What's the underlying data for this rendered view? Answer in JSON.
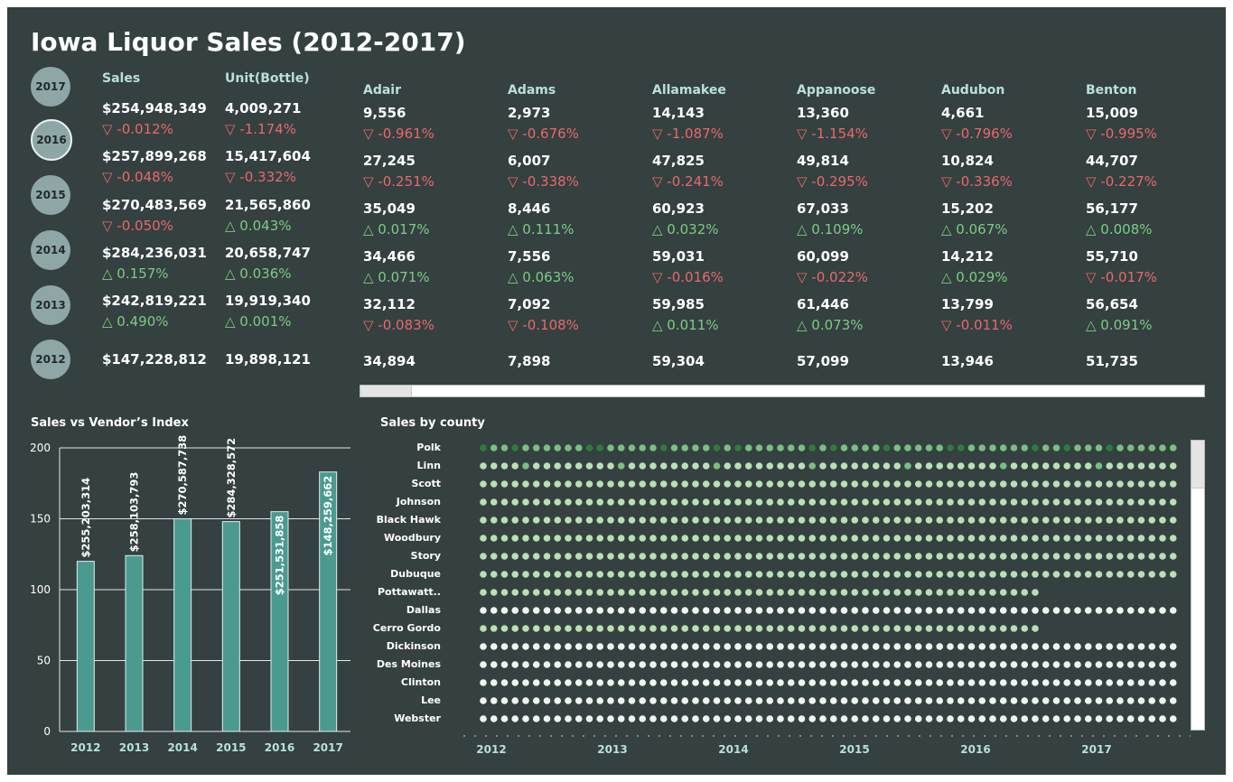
{
  "title": "Iowa Liquor Sales (2012-2017)",
  "years": [
    "2017",
    "2016",
    "2015",
    "2014",
    "2013",
    "2012"
  ],
  "selected_year": "2016",
  "headers": {
    "sales": "Sales",
    "units": "Unit(Bottle)"
  },
  "summary_rows": [
    {
      "sales": "$254,948,349",
      "sales_chg": "▽ -0.012%",
      "sales_dir": "neg",
      "units": "4,009,271",
      "units_chg": "▽ -1.174%",
      "units_dir": "neg"
    },
    {
      "sales": "$257,899,268",
      "sales_chg": "▽ -0.048%",
      "sales_dir": "neg",
      "units": "15,417,604",
      "units_chg": "▽ -0.332%",
      "units_dir": "neg"
    },
    {
      "sales": "$270,483,569",
      "sales_chg": "▽ -0.050%",
      "sales_dir": "neg",
      "units": "21,565,860",
      "units_chg": "△ 0.043%",
      "units_dir": "pos"
    },
    {
      "sales": "$284,236,031",
      "sales_chg": "△ 0.157%",
      "sales_dir": "pos",
      "units": "20,658,747",
      "units_chg": "△ 0.036%",
      "units_dir": "pos"
    },
    {
      "sales": "$242,819,221",
      "sales_chg": "△ 0.490%",
      "sales_dir": "pos",
      "units": "19,919,340",
      "units_chg": "△ 0.001%",
      "units_dir": "pos"
    },
    {
      "sales": "$147,228,812",
      "sales_chg": "",
      "sales_dir": "",
      "units": "19,898,121",
      "units_chg": "",
      "units_dir": ""
    }
  ],
  "counties": [
    {
      "name": "Adair",
      "rows": [
        {
          "v": "9,556",
          "c": "▽ -0.961%",
          "d": "neg"
        },
        {
          "v": "27,245",
          "c": "▽ -0.251%",
          "d": "neg"
        },
        {
          "v": "35,049",
          "c": "△ 0.017%",
          "d": "pos"
        },
        {
          "v": "34,466",
          "c": "△ 0.071%",
          "d": "pos"
        },
        {
          "v": "32,112",
          "c": "▽ -0.083%",
          "d": "neg"
        },
        {
          "v": "34,894",
          "c": "",
          "d": ""
        }
      ]
    },
    {
      "name": "Adams",
      "rows": [
        {
          "v": "2,973",
          "c": "▽ -0.676%",
          "d": "neg"
        },
        {
          "v": "6,007",
          "c": "▽ -0.338%",
          "d": "neg"
        },
        {
          "v": "8,446",
          "c": "△ 0.111%",
          "d": "pos"
        },
        {
          "v": "7,556",
          "c": "△ 0.063%",
          "d": "pos"
        },
        {
          "v": "7,092",
          "c": "▽ -0.108%",
          "d": "neg"
        },
        {
          "v": "7,898",
          "c": "",
          "d": ""
        }
      ]
    },
    {
      "name": "Allamakee",
      "rows": [
        {
          "v": "14,143",
          "c": "▽ -1.087%",
          "d": "neg"
        },
        {
          "v": "47,825",
          "c": "▽ -0.241%",
          "d": "neg"
        },
        {
          "v": "60,923",
          "c": "△ 0.032%",
          "d": "pos"
        },
        {
          "v": "59,031",
          "c": "▽ -0.016%",
          "d": "neg"
        },
        {
          "v": "59,985",
          "c": "△ 0.011%",
          "d": "pos"
        },
        {
          "v": "59,304",
          "c": "",
          "d": ""
        }
      ]
    },
    {
      "name": "Appanoose",
      "rows": [
        {
          "v": "13,360",
          "c": "▽ -1.154%",
          "d": "neg"
        },
        {
          "v": "49,814",
          "c": "▽ -0.295%",
          "d": "neg"
        },
        {
          "v": "67,033",
          "c": "△ 0.109%",
          "d": "pos"
        },
        {
          "v": "60,099",
          "c": "▽ -0.022%",
          "d": "neg"
        },
        {
          "v": "61,446",
          "c": "△ 0.073%",
          "d": "pos"
        },
        {
          "v": "57,099",
          "c": "",
          "d": ""
        }
      ]
    },
    {
      "name": "Audubon",
      "rows": [
        {
          "v": "4,661",
          "c": "▽ -0.796%",
          "d": "neg"
        },
        {
          "v": "10,824",
          "c": "▽ -0.336%",
          "d": "neg"
        },
        {
          "v": "15,202",
          "c": "△ 0.067%",
          "d": "pos"
        },
        {
          "v": "14,212",
          "c": "△ 0.029%",
          "d": "pos"
        },
        {
          "v": "13,799",
          "c": "▽ -0.011%",
          "d": "neg"
        },
        {
          "v": "13,946",
          "c": "",
          "d": ""
        }
      ]
    },
    {
      "name": "Benton",
      "rows": [
        {
          "v": "15,009",
          "c": "▽ -0.995%",
          "d": "neg"
        },
        {
          "v": "44,707",
          "c": "▽ -0.227%",
          "d": "neg"
        },
        {
          "v": "56,177",
          "c": "△ 0.008%",
          "d": "pos"
        },
        {
          "v": "55,710",
          "c": "▽ -0.017%",
          "d": "neg"
        },
        {
          "v": "56,654",
          "c": "△ 0.091%",
          "d": "pos"
        },
        {
          "v": "51,735",
          "c": "",
          "d": ""
        }
      ]
    }
  ],
  "bar_chart": {
    "title": "Sales vs Vendor’s Index",
    "type": "bar",
    "bar_color": "#4a9a90",
    "ylim": [
      0,
      200
    ],
    "yticks": [
      "0",
      "50",
      "100",
      "150",
      "200"
    ],
    "categories": [
      "2012",
      "2013",
      "2014",
      "2015",
      "2016",
      "2017"
    ],
    "values": [
      120,
      124,
      150,
      148,
      155,
      183
    ],
    "labels": [
      "$255,203,314",
      "$258,103,793",
      "$270,587,738",
      "$284,328,572",
      "$251,531,858",
      "$148,259,662"
    ],
    "label_inside": [
      false,
      false,
      false,
      false,
      true,
      true
    ]
  },
  "dot_chart": {
    "title": "Sales by county",
    "type": "scatter",
    "counties": [
      "Polk",
      "Linn",
      "Scott",
      "Johnson",
      "Black Hawk",
      "Woodbury",
      "Story",
      "Dubuque",
      "Pottawatt..",
      "Dallas",
      "Cerro Gordo",
      "Dickinson",
      "Des Moines",
      "Clinton",
      "Lee",
      "Webster"
    ],
    "counts": [
      66,
      66,
      66,
      66,
      66,
      66,
      66,
      66,
      53,
      66,
      53,
      66,
      66,
      66,
      66,
      66
    ],
    "x_labels": [
      "2012",
      "2013",
      "2014",
      "2015",
      "2016",
      "2017"
    ],
    "dark_green": "#2c7d3c",
    "mid_green": "#78c07e",
    "light_green": "#b8e0b4",
    "pale": "#eef6ee"
  }
}
